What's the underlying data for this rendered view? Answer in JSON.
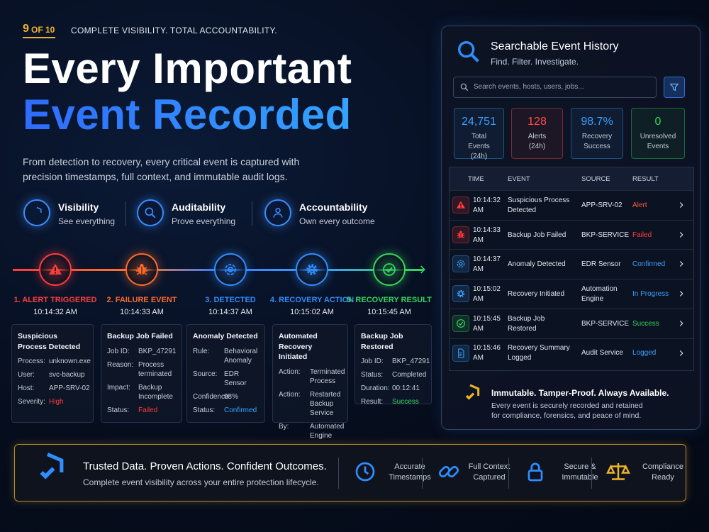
{
  "header": {
    "step": "9",
    "step_total": "OF 10",
    "tagline": "COMPLETE VISIBILITY. TOTAL ACCOUNTABILITY.",
    "title_line1": "Every Important",
    "title_line2": "Event Recorded",
    "description": "From detection to recovery, every critical event is captured with precision timestamps, full context, and immutable audit logs."
  },
  "pillars": [
    {
      "title": "Visibility",
      "subtitle": "See everything"
    },
    {
      "title": "Auditability",
      "subtitle": "Prove everything"
    },
    {
      "title": "Accountability",
      "subtitle": "Own every outcome"
    }
  ],
  "timeline": [
    {
      "step": "1. ALERT TRIGGERED",
      "time": "10:14:32 AM",
      "card_title": "Suspicious Process Detected",
      "fields": [
        [
          "Process:",
          "unknown.exe"
        ],
        [
          "User:",
          "svc-backup"
        ],
        [
          "Host:",
          "APP-SRV-02"
        ],
        [
          "Severity:",
          "High"
        ]
      ]
    },
    {
      "step": "2. FAILURE EVENT",
      "time": "10:14:33 AM",
      "card_title": "Backup Job Failed",
      "fields": [
        [
          "Job ID:",
          "BKP_47291"
        ],
        [
          "Reason:",
          "Process terminated"
        ],
        [
          "Impact:",
          "Backup Incomplete"
        ],
        [
          "Status:",
          "Failed"
        ]
      ]
    },
    {
      "step": "3. DETECTED",
      "time": "10:14:37 AM",
      "card_title": "Anomaly Detected",
      "fields": [
        [
          "Rule:",
          "Behavioral Anomaly"
        ],
        [
          "Source:",
          "EDR Sensor"
        ],
        [
          "Confidence:",
          "98%"
        ],
        [
          "Status:",
          "Confirmed"
        ]
      ]
    },
    {
      "step": "4. RECOVERY ACTION",
      "time": "10:15:02 AM",
      "card_title": "Automated Recovery Initiated",
      "fields": [
        [
          "Action:",
          "Terminated Process"
        ],
        [
          "Action:",
          "Restarted Backup Service"
        ],
        [
          "By:",
          "Automated Engine"
        ]
      ]
    },
    {
      "step": "5. RECOVERY RESULT",
      "time": "10:15:45 AM",
      "card_title": "Backup Job Restored",
      "fields": [
        [
          "Job ID:",
          "BKP_47291"
        ],
        [
          "Status:",
          "Completed"
        ],
        [
          "Duration:",
          "00:12:41"
        ],
        [
          "Result:",
          "Success"
        ]
      ]
    }
  ],
  "panel": {
    "title": "Searchable Event History",
    "subtitle": "Find. Filter. Investigate.",
    "search_placeholder": "Search events, hosts, users, jobs...",
    "stats": [
      {
        "value": "24,751",
        "label": "Total Events (24h)"
      },
      {
        "value": "128",
        "label": "Alerts (24h)"
      },
      {
        "value": "98.7%",
        "label": "Recovery Success"
      },
      {
        "value": "0",
        "label": "Unresolved Events"
      }
    ],
    "columns": [
      "TIME",
      "EVENT",
      "SOURCE",
      "RESULT"
    ],
    "rows": [
      [
        "10:14:32 AM",
        "Suspicious Process Detected",
        "APP-SRV-02",
        "Alert"
      ],
      [
        "10:14:33 AM",
        "Backup Job Failed",
        "BKP-SERVICE",
        "Failed"
      ],
      [
        "10:14:37 AM",
        "Anomaly Detected",
        "EDR Sensor",
        "Confirmed"
      ],
      [
        "10:15:02 AM",
        "Recovery Initiated",
        "Automation Engine",
        "In Progress"
      ],
      [
        "10:15:45 AM",
        "Backup Job Restored",
        "BKP-SERVICE",
        "Success"
      ],
      [
        "10:15:46 AM",
        "Recovery Summary Logged",
        "Audit Service",
        "Logged"
      ]
    ],
    "footer_title": "Immutable. Tamper-Proof. Always Available.",
    "footer_text": "Every event is securely recorded and retained for compliance, forensics, and peace of mind."
  },
  "banner": {
    "title": "Trusted Data. Proven Actions. Confident Outcomes.",
    "subtitle": "Complete event visibility across your entire protection lifecycle.",
    "features": [
      "Accurate Timestamps",
      "Full Context Captured",
      "Secure & Immutable",
      "Compliance Ready"
    ]
  }
}
